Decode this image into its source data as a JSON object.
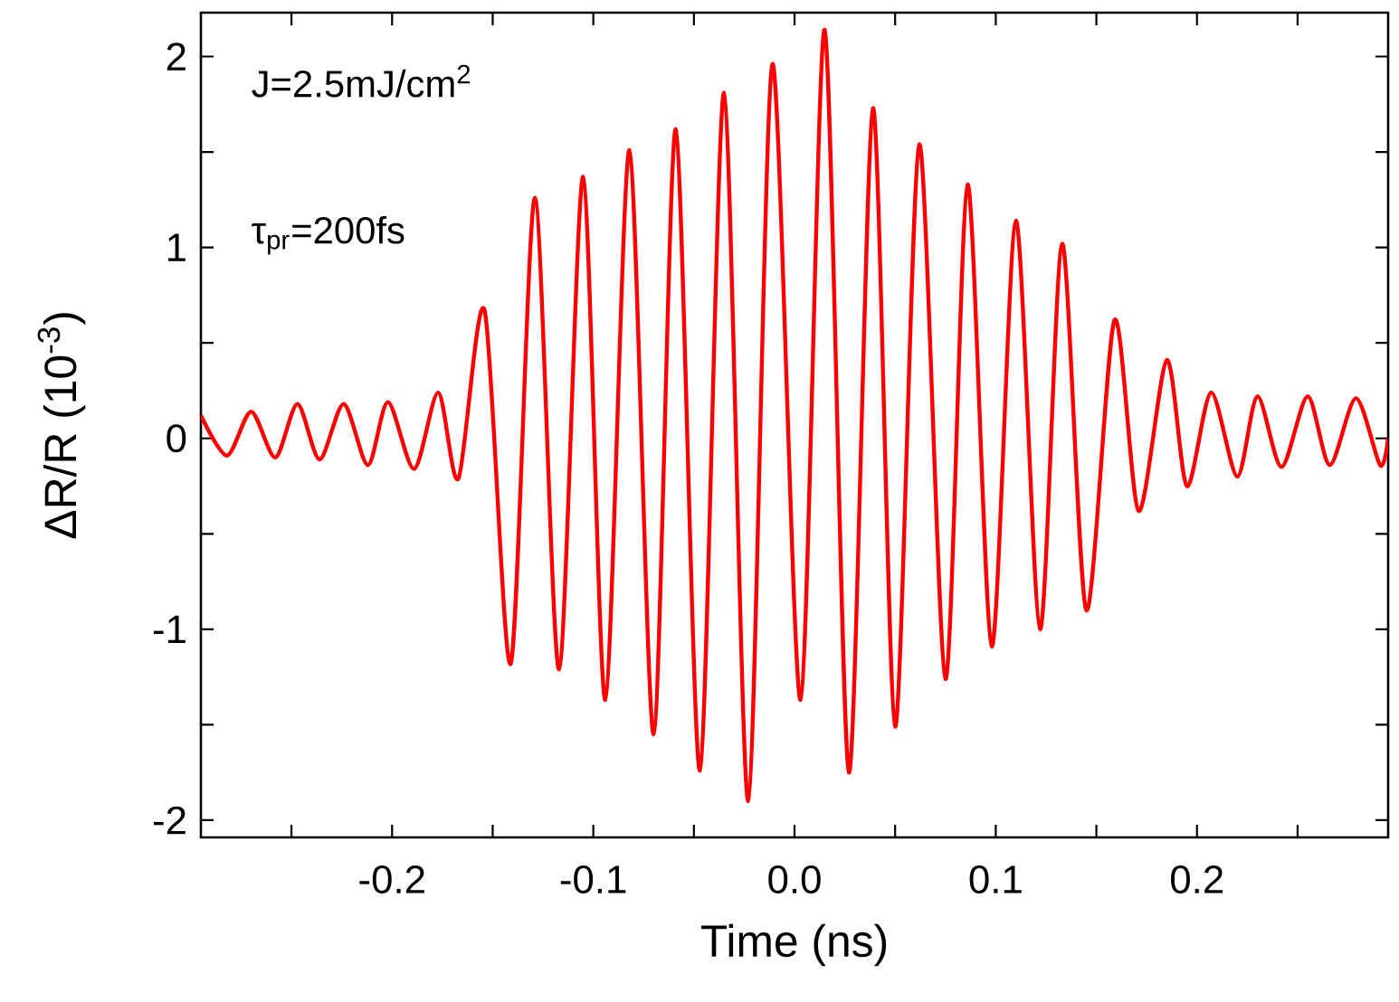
{
  "chart_data": {
    "type": "line",
    "xlabel": "Time (ns)",
    "ylabel": "ΔR/R (10$^{-3}$)",
    "annotations": [
      "J=2.5mJ/cm$^{2}$",
      "τ$_{pr}$=200fs"
    ],
    "xlim": [
      -0.295,
      0.295
    ],
    "ylim": [
      -2.09,
      2.23
    ],
    "xticks": [
      {
        "value": -0.25,
        "label": null
      },
      -0.2,
      {
        "value": -0.15,
        "label": null
      },
      -0.1,
      {
        "value": -0.05,
        "label": null
      },
      {
        "value": 0,
        "label": "0.0"
      },
      {
        "value": 0.05,
        "label": null
      },
      0.1,
      {
        "value": 0.15,
        "label": null
      },
      0.2,
      {
        "value": 0.25,
        "label": null
      }
    ],
    "yticks": [
      -2,
      {
        "value": -1.5,
        "label": null
      },
      -1,
      {
        "value": -0.5,
        "label": null
      },
      0,
      {
        "value": 0.5,
        "label": null
      },
      1,
      {
        "value": 1.5,
        "label": null
      },
      2
    ],
    "marker": "none",
    "line_style": "solid",
    "series": [
      {
        "color": "#ff0000",
        "x": [
          -0.295,
          -0.282,
          -0.27,
          -0.258,
          -0.247,
          -0.236,
          -0.224,
          -0.212,
          -0.202,
          -0.189,
          -0.177,
          -0.167,
          -0.154,
          -0.141,
          -0.129,
          -0.117,
          -0.105,
          -0.094,
          -0.082,
          -0.07,
          -0.059,
          -0.047,
          -0.035,
          -0.023,
          -0.011,
          0.003,
          0.015,
          0.027,
          0.039,
          0.05,
          0.062,
          0.075,
          0.086,
          0.098,
          0.11,
          0.122,
          0.133,
          0.145,
          0.159,
          0.171,
          0.185,
          0.195,
          0.207,
          0.22,
          0.23,
          0.242,
          0.255,
          0.266,
          0.279,
          0.291,
          0.295
        ],
        "values": [
          0.12,
          -0.09,
          0.14,
          -0.1,
          0.18,
          -0.11,
          0.18,
          -0.14,
          0.19,
          -0.16,
          0.24,
          -0.21,
          0.67,
          -1.18,
          1.26,
          -1.21,
          1.37,
          -1.37,
          1.51,
          -1.55,
          1.62,
          -1.74,
          1.81,
          -1.9,
          1.96,
          -1.37,
          2.14,
          -1.75,
          1.73,
          -1.51,
          1.54,
          -1.26,
          1.33,
          -1.09,
          1.14,
          -1.0,
          1.02,
          -0.9,
          0.62,
          -0.38,
          0.41,
          -0.25,
          0.24,
          -0.2,
          0.22,
          -0.15,
          0.22,
          -0.14,
          0.21,
          -0.14,
          0.0
        ]
      }
    ]
  }
}
